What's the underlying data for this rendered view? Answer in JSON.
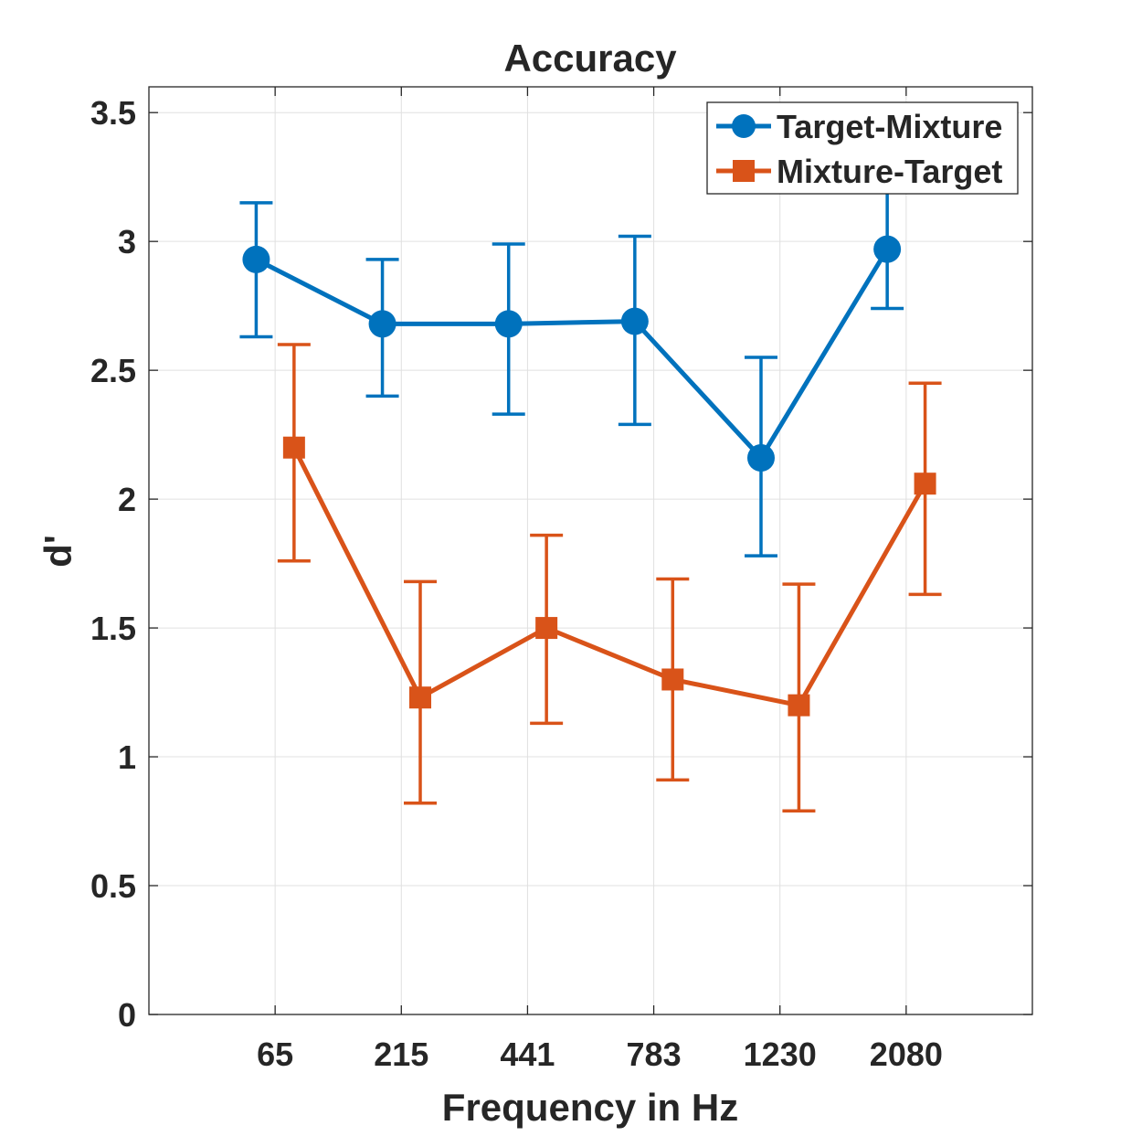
{
  "chart_data": {
    "type": "line",
    "title": "Accuracy",
    "xlabel": "Frequency in Hz",
    "ylabel": "d'",
    "categories": [
      "65",
      "215",
      "441",
      "783",
      "1230",
      "2080"
    ],
    "x_axis_positions": [
      1,
      2,
      3,
      4,
      5,
      6
    ],
    "xlim": [
      0,
      7
    ],
    "ylim": [
      0,
      3.6
    ],
    "yticks": [
      0,
      0.5,
      1,
      1.5,
      2,
      2.5,
      3,
      3.5
    ],
    "ytick_labels": [
      "0",
      "0.5",
      "1",
      "1.5",
      "2",
      "2.5",
      "3",
      "3.5"
    ],
    "grid": true,
    "legend_position": "top-right",
    "series": [
      {
        "name": "Target-Mixture",
        "marker": "circle",
        "color": "#0072BD",
        "x_offset": -0.15,
        "values": [
          2.93,
          2.68,
          2.68,
          2.69,
          2.16,
          2.97
        ],
        "error_low": [
          2.63,
          2.4,
          2.33,
          2.29,
          1.78,
          2.74
        ],
        "error_high": [
          3.15,
          2.93,
          2.99,
          3.02,
          2.55,
          3.2
        ]
      },
      {
        "name": "Mixture-Target",
        "marker": "square",
        "color": "#D95319",
        "x_offset": 0.15,
        "values": [
          2.2,
          1.23,
          1.5,
          1.3,
          1.2,
          2.06
        ],
        "error_low": [
          1.76,
          0.82,
          1.13,
          0.91,
          0.79,
          1.63
        ],
        "error_high": [
          2.6,
          1.68,
          1.86,
          1.69,
          1.67,
          2.45
        ]
      }
    ]
  }
}
